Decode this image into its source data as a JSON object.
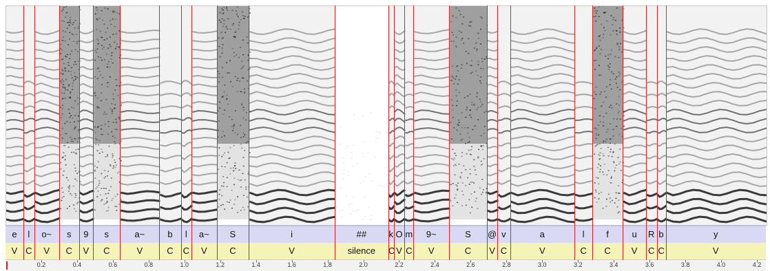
{
  "colors": {
    "boundary": "#e02020",
    "phone_tier_bg": "#d9d9f3",
    "cv_tier_bg": "#f6f3b8",
    "spectrogram_ink": "#1a1a1a"
  },
  "time_axis": {
    "start": 0.0,
    "end": 4.25,
    "ticks": [
      "0.2",
      "0.4",
      "0.6",
      "0.8",
      "1.0",
      "1.2",
      "1.4",
      "1.6",
      "1.8",
      "2.0",
      "2.2",
      "2.4",
      "2.6",
      "2.8",
      "3.0",
      "3.2",
      "3.4",
      "3.6",
      "3.8",
      "4.0",
      "4.2"
    ]
  },
  "segments": [
    {
      "phone": "e",
      "cv": "V",
      "start": 0.0,
      "end": 0.1
    },
    {
      "phone": "l",
      "cv": "C",
      "start": 0.1,
      "end": 0.16
    },
    {
      "phone": "o~",
      "cv": "V",
      "start": 0.16,
      "end": 0.3
    },
    {
      "phone": "s",
      "cv": "C",
      "start": 0.3,
      "end": 0.41
    },
    {
      "phone": "9",
      "cv": "V",
      "start": 0.41,
      "end": 0.49
    },
    {
      "phone": "s",
      "cv": "C",
      "start": 0.49,
      "end": 0.64
    },
    {
      "phone": "a~",
      "cv": "V",
      "start": 0.64,
      "end": 0.86
    },
    {
      "phone": "b",
      "cv": "C",
      "start": 0.86,
      "end": 0.98
    },
    {
      "phone": "l",
      "cv": "C",
      "start": 0.98,
      "end": 1.04
    },
    {
      "phone": "a~",
      "cv": "V",
      "start": 1.04,
      "end": 1.18
    },
    {
      "phone": "S",
      "cv": "C",
      "start": 1.18,
      "end": 1.36
    },
    {
      "phone": "i",
      "cv": "V",
      "start": 1.36,
      "end": 1.84
    },
    {
      "phone": "##",
      "cv": "silence",
      "start": 1.84,
      "end": 2.14
    },
    {
      "phone": "k",
      "cv": "C",
      "start": 2.14,
      "end": 2.17
    },
    {
      "phone": "O",
      "cv": "V",
      "start": 2.17,
      "end": 2.23
    },
    {
      "phone": "m",
      "cv": "C",
      "start": 2.23,
      "end": 2.28
    },
    {
      "phone": "9~",
      "cv": "V",
      "start": 2.28,
      "end": 2.48
    },
    {
      "phone": "S",
      "cv": "C",
      "start": 2.48,
      "end": 2.69
    },
    {
      "phone": "@",
      "cv": "V",
      "start": 2.69,
      "end": 2.75
    },
    {
      "phone": "v",
      "cv": "C",
      "start": 2.75,
      "end": 2.82
    },
    {
      "phone": "a",
      "cv": "V",
      "start": 2.82,
      "end": 3.18
    },
    {
      "phone": "l",
      "cv": "C",
      "start": 3.18,
      "end": 3.28
    },
    {
      "phone": "f",
      "cv": "C",
      "start": 3.28,
      "end": 3.45
    },
    {
      "phone": "u",
      "cv": "V",
      "start": 3.45,
      "end": 3.58
    },
    {
      "phone": "R",
      "cv": "C",
      "start": 3.58,
      "end": 3.64
    },
    {
      "phone": "b",
      "cv": "C",
      "start": 3.64,
      "end": 3.69
    },
    {
      "phone": "y",
      "cv": "V",
      "start": 3.69,
      "end": 4.25
    }
  ]
}
